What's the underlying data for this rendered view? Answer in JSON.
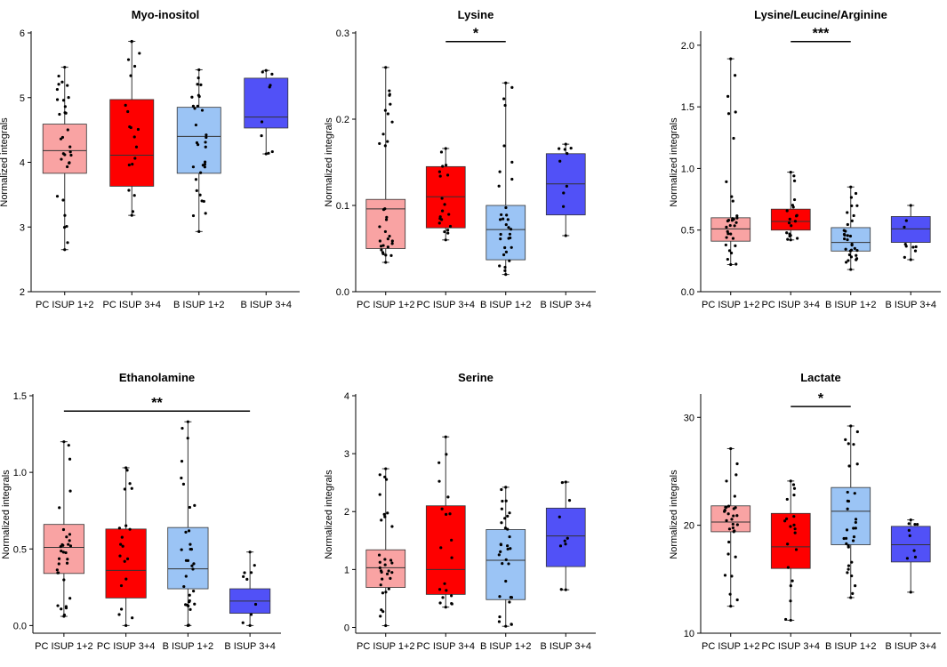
{
  "colors": {
    "pc12": "#f9a3a3",
    "pc34": "#fe0000",
    "b12": "#9bc4f5",
    "b34": "#5151f7",
    "axis": "#000000",
    "dot": "#000000"
  },
  "chart_data": [
    {
      "type": "box",
      "title": "Myo-inositol",
      "ylabel": "Normalized integrals",
      "ylim": [
        2,
        6
      ],
      "yticks": [
        2,
        3,
        4,
        5,
        6
      ],
      "ytick_labels": [
        "2",
        "3",
        "4",
        "5",
        "6"
      ],
      "categories": [
        "PC ISUP 1+2",
        "PC ISUP 3+4",
        "B ISUP 1+2",
        "B ISUP 3+4"
      ],
      "boxes": [
        {
          "min": 2.65,
          "q1": 3.83,
          "median": 4.18,
          "q3": 4.59,
          "max": 5.47
        },
        {
          "min": 3.18,
          "q1": 3.63,
          "median": 4.11,
          "q3": 4.97,
          "max": 5.87
        },
        {
          "min": 2.93,
          "q1": 3.83,
          "median": 4.4,
          "q3": 4.85,
          "max": 5.43
        },
        {
          "min": 4.13,
          "q1": 4.53,
          "median": 4.7,
          "q3": 5.3,
          "max": 5.42
        }
      ],
      "significance": []
    },
    {
      "type": "box",
      "title": "Lysine",
      "ylabel": "Normalized integrals",
      "ylim": [
        0,
        0.3
      ],
      "yticks": [
        0,
        0.1,
        0.2,
        0.3
      ],
      "ytick_labels": [
        "0.0",
        "0.1",
        "0.2",
        "0.3"
      ],
      "categories": [
        "PC ISUP 1+2",
        "PC ISUP 3+4",
        "B ISUP 1+2",
        "B ISUP 3+4"
      ],
      "boxes": [
        {
          "min": 0.034,
          "q1": 0.05,
          "median": 0.096,
          "q3": 0.107,
          "max": 0.26
        },
        {
          "min": 0.06,
          "q1": 0.074,
          "median": 0.11,
          "q3": 0.145,
          "max": 0.166
        },
        {
          "min": 0.02,
          "q1": 0.037,
          "median": 0.072,
          "q3": 0.1,
          "max": 0.242
        },
        {
          "min": 0.065,
          "q1": 0.089,
          "median": 0.125,
          "q3": 0.16,
          "max": 0.171
        }
      ],
      "significance": [
        {
          "from": 1,
          "to": 2,
          "label": "*",
          "y": 0.29
        }
      ]
    },
    {
      "type": "box",
      "title": "Lysine/Leucine/Arginine",
      "ylabel": "Normalized integrals",
      "ylim": [
        0,
        2.1
      ],
      "yticks": [
        0,
        0.5,
        1.0,
        1.5,
        2.0
      ],
      "ytick_labels": [
        "0.0",
        "0.5",
        "1.0",
        "1.5",
        "2.0"
      ],
      "categories": [
        "PC ISUP 1+2",
        "PC ISUP 3+4",
        "B ISUP 1+2",
        "B ISUP 3+4"
      ],
      "boxes": [
        {
          "min": 0.22,
          "q1": 0.41,
          "median": 0.51,
          "q3": 0.6,
          "max": 1.89
        },
        {
          "min": 0.42,
          "q1": 0.5,
          "median": 0.57,
          "q3": 0.67,
          "max": 0.97
        },
        {
          "min": 0.18,
          "q1": 0.33,
          "median": 0.4,
          "q3": 0.52,
          "max": 0.85
        },
        {
          "min": 0.26,
          "q1": 0.4,
          "median": 0.51,
          "q3": 0.61,
          "max": 0.7
        }
      ],
      "significance": [
        {
          "from": 1,
          "to": 2,
          "label": "***",
          "y": 2.03
        }
      ]
    },
    {
      "type": "box",
      "title": "Ethanolamine",
      "ylabel": "Normalized integrals",
      "ylim": [
        -0.05,
        1.5
      ],
      "yticks": [
        0,
        0.5,
        1.0,
        1.5
      ],
      "ytick_labels": [
        "0.0",
        "0.5",
        "1.0",
        "1.5"
      ],
      "categories": [
        "PC ISUP 1+2",
        "PC ISUP 3+4",
        "B ISUP 1+2",
        "B ISUP 3+4"
      ],
      "boxes": [
        {
          "min": 0.06,
          "q1": 0.34,
          "median": 0.51,
          "q3": 0.66,
          "max": 1.2
        },
        {
          "min": 0.0,
          "q1": 0.18,
          "median": 0.36,
          "q3": 0.63,
          "max": 1.03
        },
        {
          "min": 0.0,
          "q1": 0.24,
          "median": 0.37,
          "q3": 0.64,
          "max": 1.33
        },
        {
          "min": 0.0,
          "q1": 0.08,
          "median": 0.16,
          "q3": 0.24,
          "max": 0.48
        }
      ],
      "significance": [
        {
          "from": 0,
          "to": 3,
          "label": "**",
          "y": 1.4
        }
      ]
    },
    {
      "type": "box",
      "title": "Serine",
      "ylabel": "Normalized integrals",
      "ylim": [
        -0.1,
        4
      ],
      "yticks": [
        0,
        1,
        2,
        3,
        4
      ],
      "ytick_labels": [
        "0",
        "1",
        "2",
        "3",
        "4"
      ],
      "categories": [
        "PC ISUP 1+2",
        "PC ISUP 3+4",
        "B ISUP 1+2",
        "B ISUP 3+4"
      ],
      "boxes": [
        {
          "min": 0.03,
          "q1": 0.69,
          "median": 1.03,
          "q3": 1.34,
          "max": 2.74
        },
        {
          "min": 0.35,
          "q1": 0.57,
          "median": 1.0,
          "q3": 2.1,
          "max": 3.29
        },
        {
          "min": 0.02,
          "q1": 0.48,
          "median": 1.16,
          "q3": 1.69,
          "max": 2.42
        },
        {
          "min": 0.65,
          "q1": 1.05,
          "median": 1.58,
          "q3": 2.06,
          "max": 2.51
        }
      ],
      "significance": []
    },
    {
      "type": "box",
      "title": "Lactate",
      "ylabel": "Normalized integrals",
      "ylim": [
        10,
        32
      ],
      "yticks": [
        10,
        20,
        30
      ],
      "ytick_labels": [
        "10",
        "20",
        "30"
      ],
      "categories": [
        "PC ISUP 1+2",
        "PC ISUP 3+4",
        "B ISUP 1+2",
        "B ISUP 3+4"
      ],
      "boxes": [
        {
          "min": 12.5,
          "q1": 19.4,
          "median": 20.3,
          "q3": 21.8,
          "max": 27.1
        },
        {
          "min": 11.2,
          "q1": 16.0,
          "median": 18.0,
          "q3": 21.1,
          "max": 24.1
        },
        {
          "min": 13.3,
          "q1": 18.2,
          "median": 21.3,
          "q3": 23.5,
          "max": 29.2
        },
        {
          "min": 13.8,
          "q1": 16.6,
          "median": 18.2,
          "q3": 19.9,
          "max": 20.5
        }
      ],
      "significance": [
        {
          "from": 1,
          "to": 2,
          "label": "*",
          "y": 31.0
        }
      ]
    }
  ]
}
